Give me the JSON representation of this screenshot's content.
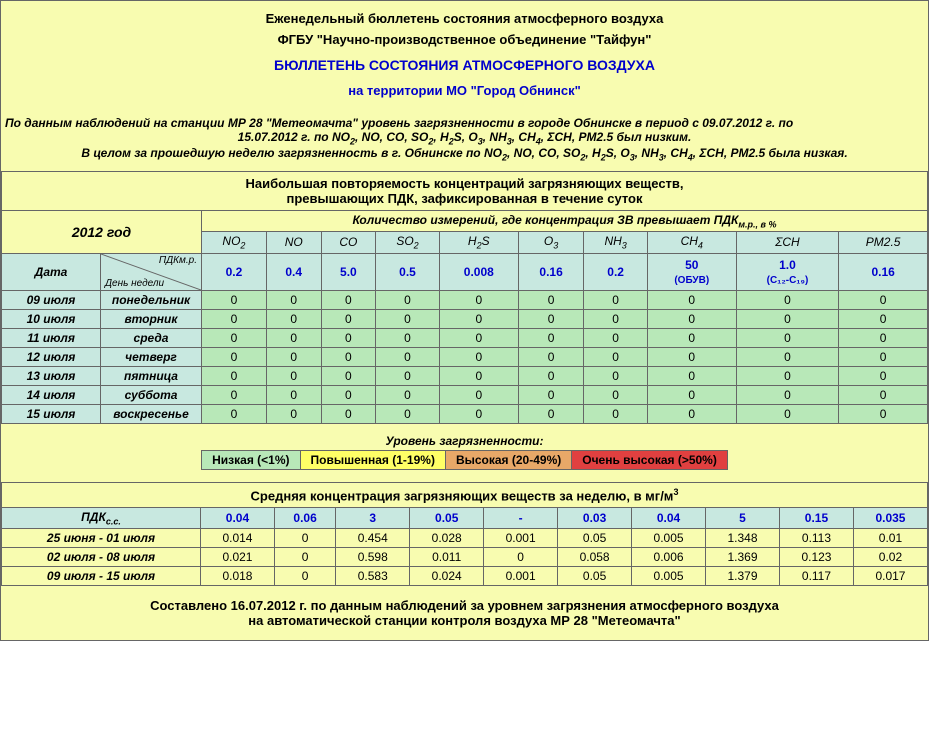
{
  "header": {
    "line1": "Еженедельный бюллетень состояния атмосферного воздуха",
    "line2": "ФГБУ \"Научно-производственное объединение \"Тайфун\"",
    "line3": "БЮЛЛЕТЕНЬ СОСТОЯНИЯ АТМОСФЕРНОГО ВОЗДУХА",
    "line4": "на территории МО \"Город Обнинск\""
  },
  "summary": {
    "line1a": "По данным наблюдений на станции МР 28 \"Метеомачта\" уровень загрязненности в городе Обнинске в период с 09.07.2012 г. по",
    "line1b": "15.07.2012 г. по NO",
    "line1c": ", NO, CO, SO",
    "line1d": ", H",
    "line1e": "S, O",
    "line1f": ", NH",
    "line1g": ", CH",
    "line1h": ", ΣCH, PM2.5 был низким.",
    "line2a": "В целом за прошедшую неделю загрязненность в г. Обнинске по NO",
    "line2b": ", NO, CO, SO",
    "line2c": ", H",
    "line2d": "S, O",
    "line2e": ", NH",
    "line2f": ", CH",
    "line2g": ", ΣCH, PM2.5 была низкая."
  },
  "table1": {
    "section_title1": "Наибольшая повторяемость концентраций загрязняющих веществ,",
    "section_title2": "превышающих ПДК, зафиксированная в течение суток",
    "year": "2012 год",
    "measure_header": "Количество измерений, где концентрация ЗВ превышает ПДК",
    "measure_suffix": "м.р., в %",
    "date_label": "Дата",
    "diag_top": "ПДКм.р.",
    "diag_bot": "День недели",
    "pollutants": [
      {
        "name": "NO",
        "sub": "2",
        "pdk": "0.2"
      },
      {
        "name": "NO",
        "sub": "",
        "pdk": "0.4"
      },
      {
        "name": "CO",
        "sub": "",
        "pdk": "5.0"
      },
      {
        "name": "SO",
        "sub": "2",
        "pdk": "0.5"
      },
      {
        "name": "H",
        "sub": "2",
        "sub2": "S",
        "pdk": "0.008"
      },
      {
        "name": "O",
        "sub": "3",
        "pdk": "0.16"
      },
      {
        "name": "NH",
        "sub": "3",
        "pdk": "0.2"
      },
      {
        "name": "CH",
        "sub": "4",
        "pdk": "50",
        "pdk_note": "(ОБУВ)"
      },
      {
        "name": "ΣCH",
        "sub": "",
        "pdk": "1.0",
        "pdk_note": "(C₁₂-C₁₉)"
      },
      {
        "name": "PM2.5",
        "sub": "",
        "pdk": "0.16"
      }
    ],
    "rows": [
      {
        "date": "09 июля",
        "day": "понедельник",
        "vals": [
          "0",
          "0",
          "0",
          "0",
          "0",
          "0",
          "0",
          "0",
          "0",
          "0"
        ]
      },
      {
        "date": "10 июля",
        "day": "вторник",
        "vals": [
          "0",
          "0",
          "0",
          "0",
          "0",
          "0",
          "0",
          "0",
          "0",
          "0"
        ]
      },
      {
        "date": "11 июля",
        "day": "среда",
        "vals": [
          "0",
          "0",
          "0",
          "0",
          "0",
          "0",
          "0",
          "0",
          "0",
          "0"
        ]
      },
      {
        "date": "12 июля",
        "day": "четверг",
        "vals": [
          "0",
          "0",
          "0",
          "0",
          "0",
          "0",
          "0",
          "0",
          "0",
          "0"
        ]
      },
      {
        "date": "13 июля",
        "day": "пятница",
        "vals": [
          "0",
          "0",
          "0",
          "0",
          "0",
          "0",
          "0",
          "0",
          "0",
          "0"
        ]
      },
      {
        "date": "14 июля",
        "day": "суббота",
        "vals": [
          "0",
          "0",
          "0",
          "0",
          "0",
          "0",
          "0",
          "0",
          "0",
          "0"
        ]
      },
      {
        "date": "15 июля",
        "day": "воскресенье",
        "vals": [
          "0",
          "0",
          "0",
          "0",
          "0",
          "0",
          "0",
          "0",
          "0",
          "0"
        ]
      }
    ]
  },
  "levels": {
    "label": "Уровень загрязненности:",
    "items": [
      {
        "text": "Низкая (<1%)",
        "class": "lvl-low"
      },
      {
        "text": "Повышенная (1-19%)",
        "class": "lvl-med"
      },
      {
        "text": "Высокая (20-49%)",
        "class": "lvl-high"
      },
      {
        "text": "Очень высокая (>50%)",
        "class": "lvl-vhigh"
      }
    ]
  },
  "table2": {
    "title_a": "Средняя концентрация загрязняющих веществ за неделю, в мг/м",
    "title_sup": "3",
    "pdk_label": "ПДК",
    "pdk_sub": "с.с.",
    "pdks": [
      "0.04",
      "0.06",
      "3",
      "0.05",
      "-",
      "0.03",
      "0.04",
      "5",
      "0.15",
      "0.035"
    ],
    "rows": [
      {
        "period": "25 июня - 01 июля",
        "vals": [
          "0.014",
          "0",
          "0.454",
          "0.028",
          "0.001",
          "0.05",
          "0.005",
          "1.348",
          "0.113",
          "0.01"
        ]
      },
      {
        "period": "02 июля - 08 июля",
        "vals": [
          "0.021",
          "0",
          "0.598",
          "0.011",
          "0",
          "0.058",
          "0.006",
          "1.369",
          "0.123",
          "0.02"
        ]
      },
      {
        "period": "09 июля - 15 июля",
        "vals": [
          "0.018",
          "0",
          "0.583",
          "0.024",
          "0.001",
          "0.05",
          "0.005",
          "1.379",
          "0.117",
          "0.017"
        ]
      }
    ]
  },
  "footer": {
    "line1": "Составлено 16.07.2012 г. по данным наблюдений за уровнем загрязнения атмосферного воздуха",
    "line2": "на автоматической станции контроля воздуха МР 28 \"Метеомачта\""
  },
  "colors": {
    "bg": "#f8fcb0",
    "header_blue": "#0000cc",
    "teal_header": "#c8e8e0",
    "green_cell": "#b8e8b8",
    "border": "#666666"
  }
}
